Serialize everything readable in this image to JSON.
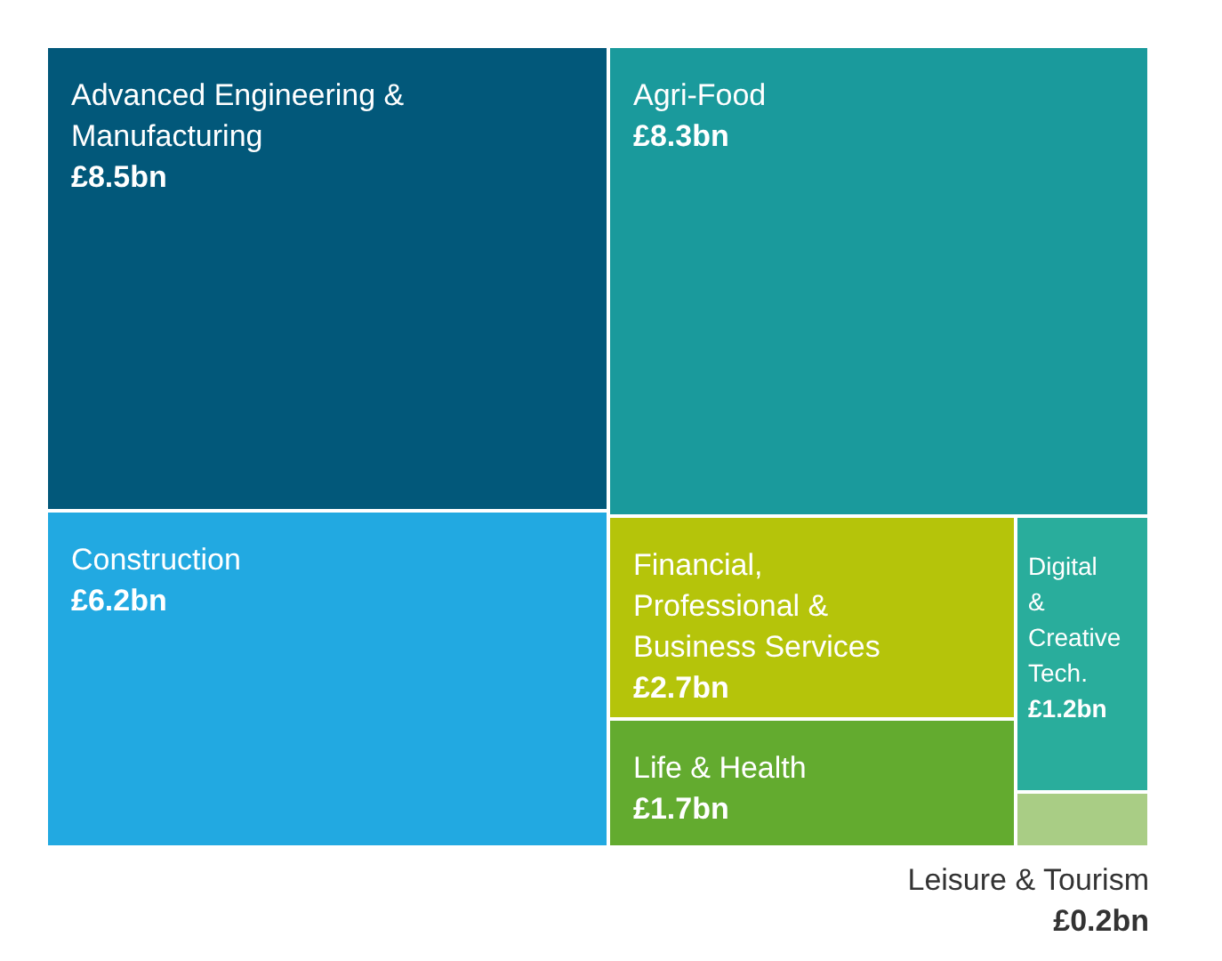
{
  "chart_data": {
    "type": "other",
    "categories": [
      "Advanced Engineering & Manufacturing",
      "Construction",
      "Agri-Food",
      "Financial, Professional & Business Services",
      "Life & Health",
      "Digital & Creative Tech.",
      "Leisure & Tourism"
    ],
    "values": [
      8.5,
      6.2,
      8.3,
      2.7,
      1.7,
      1.2,
      0.2
    ],
    "value_labels": [
      "£8.5bn",
      "£6.2bn",
      "£8.3bn",
      "£2.7bn",
      "£1.7bn",
      "£1.2bn",
      "£0.2bn"
    ],
    "colors": [
      "#02587a",
      "#22a9e1",
      "#1a9a9c",
      "#b5c40a",
      "#63ab2f",
      "#29ad9c",
      "#a9cd85"
    ]
  }
}
